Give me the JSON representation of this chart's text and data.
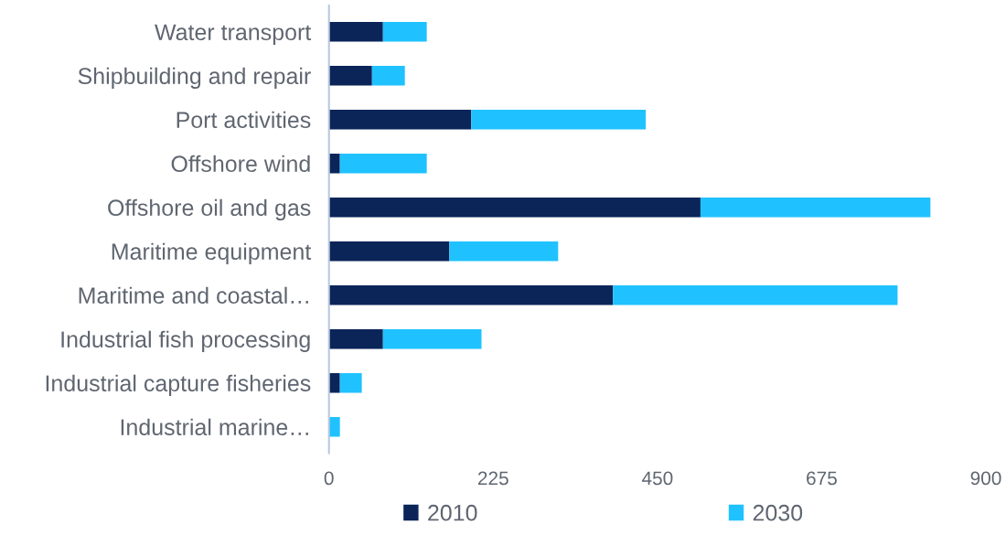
{
  "chart_data": {
    "type": "bar",
    "orientation": "horizontal",
    "stacked": true,
    "categories": [
      "Water transport",
      "Shipbuilding and repair",
      "Port activities",
      "Offshore wind",
      "Offshore oil and gas",
      "Maritime equipment",
      "Maritime and coastal…",
      "Industrial fish processing",
      "Industrial capture fisheries",
      "Industrial marine…"
    ],
    "series": [
      {
        "name": "2010",
        "color": "#0b2559",
        "values": [
          74,
          59,
          195,
          15,
          509,
          165,
          389,
          74,
          15,
          null
        ]
      },
      {
        "name": "2030",
        "color": "#1fc2ff",
        "values": [
          60,
          45,
          239,
          119,
          315,
          149,
          390,
          135,
          30,
          15
        ]
      }
    ],
    "xlim": [
      0,
      900
    ],
    "xticks": [
      0,
      225,
      450,
      675,
      900
    ],
    "grid": false,
    "legend": "bottom"
  }
}
